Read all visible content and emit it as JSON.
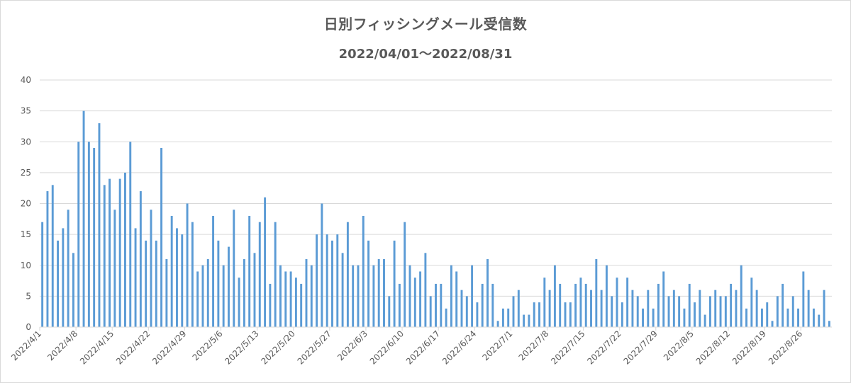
{
  "chart_data": {
    "type": "bar",
    "title": "日別フィッシングメール受信数",
    "subtitle": "2022/04/01～2022/08/31",
    "xlabel": "",
    "ylabel": "",
    "ylim": [
      0,
      40
    ],
    "yticks": [
      0,
      5,
      10,
      15,
      20,
      25,
      30,
      35,
      40
    ],
    "grid": true,
    "bar_color": "#5b9bd5",
    "grid_color": "#d9d9d9",
    "x_tick_labels": [
      "2022/4/1",
      "2022/4/8",
      "2022/4/15",
      "2022/4/22",
      "2022/4/29",
      "2022/5/6",
      "2022/5/13",
      "2022/5/20",
      "2022/5/27",
      "2022/6/3",
      "2022/6/10",
      "2022/6/17",
      "2022/6/24",
      "2022/7/1",
      "2022/7/8",
      "2022/7/15",
      "2022/7/22",
      "2022/7/29",
      "2022/8/5",
      "2022/8/12",
      "2022/8/19",
      "2022/8/26"
    ],
    "start_date": "2022/4/1",
    "values": [
      17,
      22,
      23,
      14,
      16,
      19,
      12,
      30,
      35,
      30,
      29,
      33,
      23,
      24,
      19,
      24,
      25,
      30,
      16,
      22,
      14,
      19,
      14,
      29,
      11,
      18,
      16,
      15,
      20,
      17,
      9,
      10,
      11,
      18,
      14,
      10,
      13,
      19,
      8,
      11,
      18,
      12,
      17,
      21,
      7,
      17,
      10,
      9,
      9,
      8,
      7,
      11,
      10,
      15,
      20,
      15,
      14,
      15,
      12,
      17,
      10,
      10,
      18,
      14,
      10,
      11,
      11,
      5,
      14,
      7,
      17,
      10,
      8,
      9,
      12,
      5,
      7,
      7,
      3,
      10,
      9,
      6,
      5,
      10,
      4,
      7,
      11,
      7,
      1,
      3,
      3,
      5,
      6,
      2,
      2,
      4,
      4,
      8,
      6,
      10,
      7,
      4,
      4,
      7,
      8,
      7,
      6,
      11,
      6,
      10,
      5,
      8,
      4,
      8,
      6,
      5,
      3,
      6,
      3,
      7,
      9,
      5,
      6,
      5,
      3,
      7,
      4,
      6,
      2,
      5,
      6,
      5,
      5,
      7,
      6,
      10,
      3,
      8,
      6,
      3,
      4,
      1,
      5,
      7,
      3,
      5,
      3,
      9,
      6,
      3,
      2,
      6,
      1
    ]
  }
}
